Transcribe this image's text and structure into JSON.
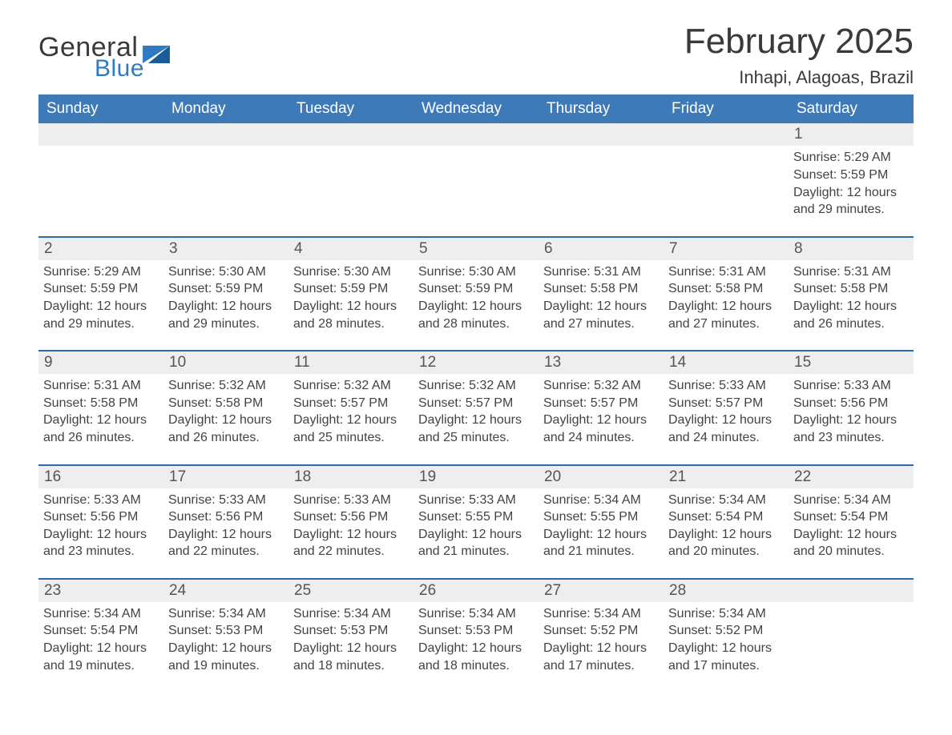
{
  "logo": {
    "word1": "General",
    "word2": "Blue"
  },
  "title": "February 2025",
  "location": "Inhapi, Alagoas, Brazil",
  "colors": {
    "header_blue": "#3f7ab8",
    "rule_blue": "#2f6aa8",
    "light_gray": "#eeeeee",
    "text_dark": "#434343",
    "title_color": "#3a3a3a",
    "logo_blue": "#2f7ac0",
    "background": "#ffffff"
  },
  "typography": {
    "title_fontsize": 44,
    "location_fontsize": 22,
    "header_fontsize": 19,
    "daynum_fontsize": 19,
    "cell_fontsize": 16,
    "logo_general_fontsize": 34,
    "logo_blue_fontsize": 30
  },
  "labels": {
    "sunrise": "Sunrise:",
    "sunset": "Sunset:",
    "daylight": "Daylight:"
  },
  "weekdays": [
    "Sunday",
    "Monday",
    "Tuesday",
    "Wednesday",
    "Thursday",
    "Friday",
    "Saturday"
  ],
  "weeks": [
    [
      null,
      null,
      null,
      null,
      null,
      null,
      {
        "day": "1",
        "sunrise": "5:29 AM",
        "sunset": "5:59 PM",
        "daylight": "12 hours and 29 minutes."
      }
    ],
    [
      {
        "day": "2",
        "sunrise": "5:29 AM",
        "sunset": "5:59 PM",
        "daylight": "12 hours and 29 minutes."
      },
      {
        "day": "3",
        "sunrise": "5:30 AM",
        "sunset": "5:59 PM",
        "daylight": "12 hours and 29 minutes."
      },
      {
        "day": "4",
        "sunrise": "5:30 AM",
        "sunset": "5:59 PM",
        "daylight": "12 hours and 28 minutes."
      },
      {
        "day": "5",
        "sunrise": "5:30 AM",
        "sunset": "5:59 PM",
        "daylight": "12 hours and 28 minutes."
      },
      {
        "day": "6",
        "sunrise": "5:31 AM",
        "sunset": "5:58 PM",
        "daylight": "12 hours and 27 minutes."
      },
      {
        "day": "7",
        "sunrise": "5:31 AM",
        "sunset": "5:58 PM",
        "daylight": "12 hours and 27 minutes."
      },
      {
        "day": "8",
        "sunrise": "5:31 AM",
        "sunset": "5:58 PM",
        "daylight": "12 hours and 26 minutes."
      }
    ],
    [
      {
        "day": "9",
        "sunrise": "5:31 AM",
        "sunset": "5:58 PM",
        "daylight": "12 hours and 26 minutes."
      },
      {
        "day": "10",
        "sunrise": "5:32 AM",
        "sunset": "5:58 PM",
        "daylight": "12 hours and 26 minutes."
      },
      {
        "day": "11",
        "sunrise": "5:32 AM",
        "sunset": "5:57 PM",
        "daylight": "12 hours and 25 minutes."
      },
      {
        "day": "12",
        "sunrise": "5:32 AM",
        "sunset": "5:57 PM",
        "daylight": "12 hours and 25 minutes."
      },
      {
        "day": "13",
        "sunrise": "5:32 AM",
        "sunset": "5:57 PM",
        "daylight": "12 hours and 24 minutes."
      },
      {
        "day": "14",
        "sunrise": "5:33 AM",
        "sunset": "5:57 PM",
        "daylight": "12 hours and 24 minutes."
      },
      {
        "day": "15",
        "sunrise": "5:33 AM",
        "sunset": "5:56 PM",
        "daylight": "12 hours and 23 minutes."
      }
    ],
    [
      {
        "day": "16",
        "sunrise": "5:33 AM",
        "sunset": "5:56 PM",
        "daylight": "12 hours and 23 minutes."
      },
      {
        "day": "17",
        "sunrise": "5:33 AM",
        "sunset": "5:56 PM",
        "daylight": "12 hours and 22 minutes."
      },
      {
        "day": "18",
        "sunrise": "5:33 AM",
        "sunset": "5:56 PM",
        "daylight": "12 hours and 22 minutes."
      },
      {
        "day": "19",
        "sunrise": "5:33 AM",
        "sunset": "5:55 PM",
        "daylight": "12 hours and 21 minutes."
      },
      {
        "day": "20",
        "sunrise": "5:34 AM",
        "sunset": "5:55 PM",
        "daylight": "12 hours and 21 minutes."
      },
      {
        "day": "21",
        "sunrise": "5:34 AM",
        "sunset": "5:54 PM",
        "daylight": "12 hours and 20 minutes."
      },
      {
        "day": "22",
        "sunrise": "5:34 AM",
        "sunset": "5:54 PM",
        "daylight": "12 hours and 20 minutes."
      }
    ],
    [
      {
        "day": "23",
        "sunrise": "5:34 AM",
        "sunset": "5:54 PM",
        "daylight": "12 hours and 19 minutes."
      },
      {
        "day": "24",
        "sunrise": "5:34 AM",
        "sunset": "5:53 PM",
        "daylight": "12 hours and 19 minutes."
      },
      {
        "day": "25",
        "sunrise": "5:34 AM",
        "sunset": "5:53 PM",
        "daylight": "12 hours and 18 minutes."
      },
      {
        "day": "26",
        "sunrise": "5:34 AM",
        "sunset": "5:53 PM",
        "daylight": "12 hours and 18 minutes."
      },
      {
        "day": "27",
        "sunrise": "5:34 AM",
        "sunset": "5:52 PM",
        "daylight": "12 hours and 17 minutes."
      },
      {
        "day": "28",
        "sunrise": "5:34 AM",
        "sunset": "5:52 PM",
        "daylight": "12 hours and 17 minutes."
      },
      null
    ]
  ]
}
